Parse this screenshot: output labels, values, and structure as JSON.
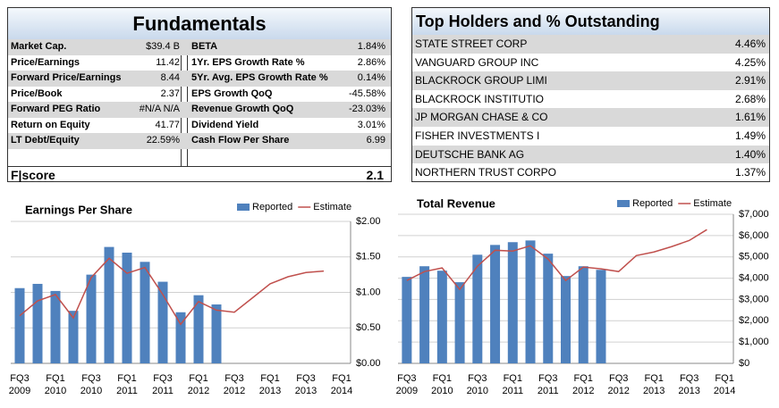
{
  "fundamentals": {
    "title": "Fundamentals",
    "rows": [
      [
        "Market Cap.",
        "$39.4 B",
        "BETA",
        "1.84%"
      ],
      [
        "Price/Earnings",
        "11.42",
        "1Yr. EPS Growth Rate %",
        "2.86%"
      ],
      [
        "Forward Price/Earnings",
        "8.44",
        "5Yr. Avg. EPS Growth Rate %",
        "0.14%"
      ],
      [
        "Price/Book",
        "2.37",
        "EPS Growth QoQ",
        "-45.58%"
      ],
      [
        "Forward PEG Ratio",
        "#N/A N/A",
        "Revenue Growth QoQ",
        "-23.03%"
      ],
      [
        "Return on Equity",
        "41.77",
        "Dividend Yield",
        "3.01%"
      ],
      [
        "LT Debt/Equity",
        "22.59%",
        "Cash Flow Per Share",
        "6.99"
      ]
    ],
    "score_label": "F|score",
    "score": "2.1"
  },
  "holders": {
    "title": "Top Holders and % Outstanding",
    "rows": [
      [
        "STATE STREET CORP",
        "4.46%"
      ],
      [
        "VANGUARD GROUP INC",
        "4.25%"
      ],
      [
        "BLACKROCK GROUP LIMI",
        "2.91%"
      ],
      [
        "BLACKROCK INSTITUTIO",
        "2.68%"
      ],
      [
        "JP MORGAN CHASE & CO",
        "1.61%"
      ],
      [
        "FISHER INVESTMENTS I",
        "1.49%"
      ],
      [
        "DEUTSCHE BANK AG",
        "1.40%"
      ],
      [
        "NORTHERN TRUST CORPO",
        "1.37%"
      ]
    ]
  },
  "chart_data": [
    {
      "type": "combo",
      "title": "Earnings Per Share",
      "categories": [
        "FQ3 2009",
        null,
        "FQ1 2010",
        null,
        "FQ3 2010",
        null,
        "FQ1 2011",
        null,
        "FQ3 2011",
        null,
        "FQ1 2012",
        null,
        "FQ3 2012",
        null,
        "FQ1 2013",
        null,
        "FQ3 2013",
        null,
        "FQ1 2014"
      ],
      "series": [
        {
          "name": "Reported",
          "color": "#4f81bd",
          "mark": "bar",
          "values": [
            1.06,
            1.12,
            1.02,
            0.74,
            1.25,
            1.64,
            1.56,
            1.43,
            1.15,
            0.72,
            0.96,
            0.83,
            null,
            null,
            null,
            null,
            null,
            null,
            null
          ]
        },
        {
          "name": "Estimate",
          "color": "#c0504d",
          "mark": "line",
          "values": [
            0.67,
            0.88,
            0.97,
            0.64,
            1.21,
            1.48,
            1.27,
            1.35,
            0.97,
            0.55,
            0.87,
            0.75,
            0.72,
            0.92,
            1.12,
            1.22,
            1.28,
            1.3,
            null
          ]
        }
      ],
      "ylim": [
        0,
        2
      ],
      "yticks": [
        {
          "value": 0,
          "label": "$0.00"
        },
        {
          "value": 0.5,
          "label": "$0.50"
        },
        {
          "value": 1,
          "label": "$1.00"
        },
        {
          "value": 1.5,
          "label": "$1.50"
        },
        {
          "value": 2,
          "label": "$2.00"
        }
      ],
      "grid": true,
      "legend": "top-right"
    },
    {
      "type": "combo",
      "title": "Total Revenue",
      "categories": [
        "FQ3 2009",
        null,
        "FQ1 2010",
        null,
        "FQ3 2010",
        null,
        "FQ1 2011",
        null,
        "FQ3 2011",
        null,
        "FQ1 2012",
        null,
        "FQ3 2012",
        null,
        "FQ1 2013",
        null,
        "FQ3 2013",
        null,
        "FQ1 2014"
      ],
      "series": [
        {
          "name": "Reported",
          "color": "#4f81bd",
          "mark": "bar",
          "values": [
            4060,
            4560,
            4350,
            3810,
            5100,
            5560,
            5690,
            5770,
            5150,
            4100,
            4560,
            4390,
            null,
            null,
            null,
            null,
            null,
            null,
            null
          ]
        },
        {
          "name": "Estimate",
          "color": "#c0504d",
          "mark": "line",
          "values": [
            3890,
            4310,
            4480,
            3470,
            4560,
            5310,
            5270,
            5520,
            4900,
            3890,
            4520,
            4440,
            4310,
            5060,
            5230,
            5480,
            5770,
            6280,
            null
          ]
        }
      ],
      "ylim": [
        0,
        7000
      ],
      "yticks": [
        {
          "value": 0,
          "label": "$0"
        },
        {
          "value": 1000,
          "label": "$1,000"
        },
        {
          "value": 2000,
          "label": "$2,000"
        },
        {
          "value": 3000,
          "label": "$3,000"
        },
        {
          "value": 4000,
          "label": "$4,000"
        },
        {
          "value": 5000,
          "label": "$5,000"
        },
        {
          "value": 6000,
          "label": "$6,000"
        },
        {
          "value": 7000,
          "label": "$7,000"
        }
      ],
      "grid": true,
      "legend": "top-right"
    }
  ]
}
